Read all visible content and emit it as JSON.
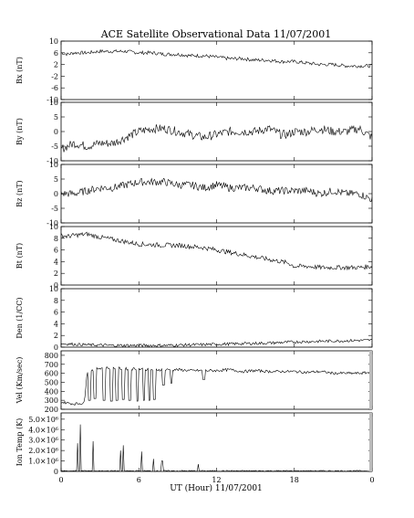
{
  "chart_data": {
    "type": "line",
    "title": "ACE Satellite Observational Data   11/07/2001",
    "xlabel": "UT (Hour)  11/07/2001",
    "x_ticks": [
      "0",
      "6",
      "12",
      "18",
      "0"
    ],
    "xlim": [
      0,
      24
    ],
    "panels": [
      {
        "name": "bx",
        "ylabel": "Bx (nT)",
        "ylim": [
          -10,
          10
        ],
        "yticks": [
          "10",
          "6",
          "2",
          "-2",
          "-6",
          "-10"
        ],
        "tick_values": [
          10,
          6,
          2,
          -2,
          -6,
          -10
        ],
        "x": [
          0,
          0.5,
          1,
          2,
          3,
          4,
          5,
          6,
          7,
          8,
          9,
          10,
          11,
          12,
          13,
          14,
          15,
          16,
          17,
          17.5,
          18,
          19,
          20,
          21,
          22,
          23,
          24
        ],
        "values": [
          6,
          5.5,
          6,
          6,
          6.5,
          6.5,
          6.5,
          6,
          6,
          5.5,
          5.5,
          5,
          5,
          4.5,
          4,
          4,
          3.5,
          3.5,
          3,
          3,
          3,
          2.5,
          2,
          2,
          1.5,
          1.5,
          1.5
        ],
        "noise": 0.6
      },
      {
        "name": "by",
        "ylabel": "By (nT)",
        "ylim": [
          -10,
          10
        ],
        "yticks": [
          "10",
          "5",
          "0",
          "-5",
          "-10"
        ],
        "tick_values": [
          10,
          5,
          0,
          -5,
          -10
        ],
        "x": [
          0,
          0.5,
          1,
          2,
          3,
          4,
          5,
          6,
          7,
          8,
          9,
          10,
          11,
          12,
          13,
          14,
          15,
          16,
          17,
          17.5,
          18,
          19,
          20,
          21,
          22,
          23,
          24
        ],
        "values": [
          -6,
          -5,
          -4,
          -5,
          -4,
          -4,
          -2,
          0,
          1,
          1,
          0,
          -1,
          -2,
          -1,
          0,
          0,
          0,
          1,
          -1,
          -1,
          0,
          0,
          1,
          0,
          0,
          1,
          -2
        ],
        "noise": 1.5
      },
      {
        "name": "bz",
        "ylabel": "Bz (nT)",
        "ylim": [
          -10,
          10
        ],
        "yticks": [
          "10",
          "5",
          "0",
          "-5",
          "-10"
        ],
        "tick_values": [
          10,
          5,
          0,
          -5,
          -10
        ],
        "x": [
          0,
          0.5,
          1,
          2,
          3,
          4,
          5,
          6,
          7,
          8,
          9,
          10,
          11,
          12,
          13,
          14,
          15,
          16,
          17,
          17.5,
          18,
          19,
          20,
          21,
          22,
          23,
          24
        ],
        "values": [
          0,
          0,
          0,
          1,
          2,
          2,
          3,
          4,
          4,
          4,
          3,
          3,
          2,
          3,
          2,
          2,
          2,
          1,
          1,
          1,
          1,
          1,
          0,
          1,
          0,
          0,
          -2
        ],
        "noise": 1.3
      },
      {
        "name": "bt",
        "ylabel": "Bt (nT)",
        "ylim": [
          0,
          10
        ],
        "yticks": [
          "10",
          "8",
          "6",
          "4",
          "2",
          "0"
        ],
        "tick_values": [
          10,
          8,
          6,
          4,
          2,
          0
        ],
        "x": [
          0,
          0.5,
          1,
          2,
          3,
          4,
          5,
          6,
          7,
          8,
          9,
          10,
          11,
          12,
          13,
          14,
          15,
          16,
          17,
          17.5,
          18,
          19,
          20,
          21,
          22,
          23,
          24
        ],
        "values": [
          8.5,
          8.3,
          8.5,
          8.7,
          8.2,
          7.8,
          7.4,
          7.0,
          6.9,
          6.8,
          6.8,
          6.6,
          6.4,
          6.0,
          5.6,
          5.2,
          4.8,
          4.4,
          4.0,
          3.8,
          3.2,
          3.2,
          3.0,
          3.0,
          3.0,
          3.0,
          3.2
        ],
        "noise": 0.4
      },
      {
        "name": "den",
        "ylabel": "Den (1/CC)",
        "ylim": [
          0,
          10
        ],
        "yticks": [
          "10",
          "8",
          "6",
          "4",
          "2",
          "0"
        ],
        "tick_values": [
          10,
          8,
          6,
          4,
          2,
          0
        ],
        "x": [
          0,
          1,
          2,
          4,
          6,
          8,
          10,
          12,
          14,
          16,
          18,
          20,
          22,
          24
        ],
        "values": [
          0.6,
          0.5,
          0.4,
          0.3,
          0.3,
          0.3,
          0.4,
          0.5,
          0.6,
          0.7,
          0.9,
          1.0,
          1.1,
          1.2
        ],
        "noise": 0.25
      },
      {
        "name": "vel",
        "ylabel": "Vel (Km/sec)",
        "ylim": [
          200,
          850
        ],
        "yticks": [
          "800",
          "700",
          "600",
          "500",
          "400",
          "300",
          "200"
        ],
        "tick_values": [
          800,
          700,
          600,
          500,
          400,
          300,
          200
        ],
        "x": [
          0,
          1,
          1.8,
          2,
          3,
          4,
          5,
          6,
          7,
          8,
          9,
          10,
          11,
          12,
          13,
          14,
          15,
          16,
          17,
          18,
          19,
          20,
          21,
          22,
          23,
          24
        ],
        "values": [
          280,
          260,
          270,
          620,
          660,
          660,
          650,
          650,
          640,
          640,
          640,
          630,
          630,
          630,
          640,
          620,
          630,
          620,
          620,
          620,
          610,
          620,
          600,
          600,
          600,
          610
        ],
        "dips": [
          [
            2.2,
            300
          ],
          [
            2.6,
            320
          ],
          [
            3.3,
            300
          ],
          [
            3.9,
            290
          ],
          [
            4.3,
            300
          ],
          [
            4.8,
            310
          ],
          [
            5.3,
            300
          ],
          [
            5.9,
            290
          ],
          [
            6.4,
            300
          ],
          [
            6.8,
            300
          ],
          [
            7.2,
            310
          ],
          [
            7.9,
            470
          ],
          [
            8.5,
            490
          ],
          [
            11.0,
            530
          ]
        ],
        "noise": 15
      },
      {
        "name": "temp",
        "ylabel": "Ion Temp (K)",
        "ylim": [
          0,
          5.6
        ],
        "yticks": [
          "5.0×10⁶",
          "4.0×10⁶",
          "3.0×10⁶",
          "2.0×10⁶",
          "1.0×10⁶",
          "0"
        ],
        "tick_values": [
          5.0,
          4.0,
          3.0,
          2.0,
          1.0,
          0
        ],
        "x": [
          0,
          24
        ],
        "values": [
          0.05,
          0.05
        ],
        "spikes": [
          [
            1.3,
            2.7
          ],
          [
            1.5,
            4.5
          ],
          [
            2.5,
            2.9
          ],
          [
            4.6,
            2.0
          ],
          [
            4.8,
            2.5
          ],
          [
            6.2,
            1.9
          ],
          [
            7.1,
            1.2
          ],
          [
            7.8,
            1.0
          ],
          [
            10.6,
            0.7
          ]
        ],
        "noise": 0.05
      }
    ]
  }
}
